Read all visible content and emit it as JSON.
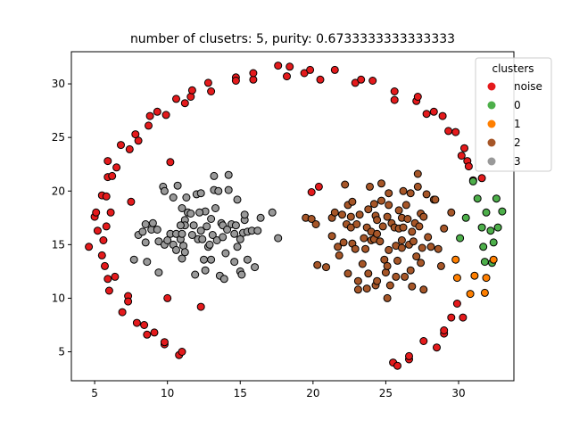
{
  "chart_data": {
    "type": "scatter",
    "title": "number of clusetrs: 5, purity: 0.6733333333333333",
    "xlabel": "",
    "ylabel": "",
    "xlim": [
      3.4,
      33.8
    ],
    "ylim": [
      2.3,
      33.0
    ],
    "x_ticks": [
      5,
      10,
      15,
      20,
      25,
      30
    ],
    "y_ticks": [
      5,
      10,
      15,
      20,
      25,
      30
    ],
    "grid": false,
    "legend": {
      "title": "clusters",
      "placement": "top-right",
      "entries": [
        {
          "label": "noise",
          "color": "#e41a1c"
        },
        {
          "label": "0",
          "color": "#4daf4a"
        },
        {
          "label": "1",
          "color": "#ff7f00"
        },
        {
          "label": "2",
          "color": "#a65628"
        },
        {
          "label": "3",
          "color": "#999999"
        }
      ]
    },
    "series": [
      {
        "name": "noise",
        "color": "#e41a1c",
        "points": [
          [
            4.6,
            14.8
          ],
          [
            5.0,
            17.6
          ],
          [
            5.2,
            16.3
          ],
          [
            5.1,
            18.0
          ],
          [
            5.5,
            19.6
          ],
          [
            5.6,
            15.4
          ],
          [
            5.5,
            14.0
          ],
          [
            5.7,
            13.0
          ],
          [
            5.8,
            19.5
          ],
          [
            5.8,
            16.7
          ],
          [
            5.9,
            21.3
          ],
          [
            5.9,
            22.8
          ],
          [
            5.9,
            11.8
          ],
          [
            6.0,
            10.7
          ],
          [
            6.1,
            18.0
          ],
          [
            6.2,
            21.4
          ],
          [
            6.4,
            12.0
          ],
          [
            6.5,
            22.2
          ],
          [
            6.8,
            24.3
          ],
          [
            6.9,
            8.7
          ],
          [
            7.3,
            10.2
          ],
          [
            7.3,
            9.7
          ],
          [
            7.5,
            19.0
          ],
          [
            7.4,
            23.9
          ],
          [
            7.8,
            25.3
          ],
          [
            7.9,
            7.7
          ],
          [
            8.0,
            24.7
          ],
          [
            8.4,
            7.5
          ],
          [
            8.6,
            6.6
          ],
          [
            8.7,
            26.1
          ],
          [
            8.8,
            27.0
          ],
          [
            9.1,
            6.8
          ],
          [
            9.3,
            27.4
          ],
          [
            9.8,
            5.7
          ],
          [
            9.8,
            5.9
          ],
          [
            9.9,
            27.1
          ],
          [
            10.0,
            10.0
          ],
          [
            10.2,
            22.7
          ],
          [
            10.6,
            28.6
          ],
          [
            10.8,
            4.7
          ],
          [
            11.0,
            5.0
          ],
          [
            11.2,
            28.2
          ],
          [
            11.6,
            28.8
          ],
          [
            11.7,
            29.4
          ],
          [
            12.3,
            9.2
          ],
          [
            12.8,
            30.1
          ],
          [
            13.0,
            29.3
          ],
          [
            14.7,
            30.6
          ],
          [
            14.7,
            30.3
          ],
          [
            15.9,
            30.4
          ],
          [
            15.9,
            31.0
          ],
          [
            17.6,
            31.7
          ],
          [
            18.2,
            30.7
          ],
          [
            18.4,
            31.6
          ],
          [
            19.4,
            31.0
          ],
          [
            19.8,
            31.3
          ],
          [
            19.9,
            19.9
          ],
          [
            20.4,
            20.4
          ],
          [
            20.5,
            30.4
          ],
          [
            21.5,
            31.3
          ],
          [
            22.9,
            30.1
          ],
          [
            23.3,
            30.4
          ],
          [
            24.1,
            30.3
          ],
          [
            25.6,
            29.3
          ],
          [
            25.6,
            28.5
          ],
          [
            25.5,
            4.0
          ],
          [
            25.8,
            3.7
          ],
          [
            26.6,
            4.3
          ],
          [
            26.6,
            4.6
          ],
          [
            27.1,
            28.4
          ],
          [
            27.2,
            28.8
          ],
          [
            27.6,
            6.0
          ],
          [
            27.8,
            27.2
          ],
          [
            28.3,
            27.4
          ],
          [
            28.5,
            5.4
          ],
          [
            28.9,
            27.0
          ],
          [
            29.0,
            6.7
          ],
          [
            29.0,
            7.0
          ],
          [
            29.3,
            25.6
          ],
          [
            29.5,
            8.2
          ],
          [
            29.8,
            25.5
          ],
          [
            29.9,
            9.5
          ],
          [
            30.2,
            23.3
          ],
          [
            30.4,
            24.0
          ],
          [
            30.3,
            8.2
          ],
          [
            30.6,
            22.8
          ],
          [
            30.7,
            22.3
          ],
          [
            31.0,
            21.0
          ],
          [
            31.6,
            21.2
          ]
        ]
      },
      {
        "name": "0",
        "color": "#4daf4a",
        "points": [
          [
            30.1,
            15.6
          ],
          [
            30.5,
            17.5
          ],
          [
            31.0,
            20.9
          ],
          [
            31.3,
            19.3
          ],
          [
            31.6,
            16.6
          ],
          [
            31.7,
            14.8
          ],
          [
            31.8,
            13.4
          ],
          [
            31.9,
            18.0
          ],
          [
            32.2,
            16.3
          ],
          [
            32.3,
            13.3
          ],
          [
            32.4,
            15.2
          ],
          [
            32.6,
            19.3
          ],
          [
            32.7,
            16.6
          ],
          [
            33.0,
            18.1
          ]
        ]
      },
      {
        "name": "1",
        "color": "#ff7f00",
        "points": [
          [
            29.8,
            13.6
          ],
          [
            29.9,
            11.9
          ],
          [
            30.8,
            10.4
          ],
          [
            31.1,
            12.1
          ],
          [
            31.8,
            10.5
          ],
          [
            31.9,
            11.9
          ],
          [
            32.4,
            13.6
          ]
        ]
      },
      {
        "name": "2",
        "color": "#a65628",
        "points": [
          [
            19.5,
            17.5
          ],
          [
            19.9,
            17.4
          ],
          [
            20.2,
            16.9
          ],
          [
            20.3,
            13.1
          ],
          [
            20.9,
            12.9
          ],
          [
            21.3,
            17.5
          ],
          [
            21.5,
            18.0
          ],
          [
            21.7,
            14.8
          ],
          [
            21.8,
            14.0
          ],
          [
            22.0,
            17.8
          ],
          [
            22.1,
            15.2
          ],
          [
            22.2,
            20.6
          ],
          [
            22.3,
            16.9
          ],
          [
            22.4,
            18.7
          ],
          [
            22.6,
            17.6
          ],
          [
            22.6,
            16.6
          ],
          [
            22.7,
            15.1
          ],
          [
            22.7,
            19.0
          ],
          [
            22.9,
            14.6
          ],
          [
            23.0,
            16.9
          ],
          [
            23.2,
            17.8
          ],
          [
            23.1,
            11.6
          ],
          [
            23.1,
            10.8
          ],
          [
            23.4,
            13.2
          ],
          [
            23.5,
            15.6
          ],
          [
            23.6,
            14.6
          ],
          [
            23.7,
            10.9
          ],
          [
            23.7,
            16.6
          ],
          [
            23.8,
            18.3
          ],
          [
            23.8,
            12.3
          ],
          [
            24.0,
            16.2
          ],
          [
            24.0,
            15.4
          ],
          [
            23.9,
            20.4
          ],
          [
            24.2,
            18.8
          ],
          [
            24.2,
            15.5
          ],
          [
            24.3,
            17.7
          ],
          [
            24.3,
            11.2
          ],
          [
            24.4,
            16.0
          ],
          [
            24.4,
            17.3
          ],
          [
            24.6,
            15.3
          ],
          [
            24.7,
            19.1
          ],
          [
            24.7,
            20.7
          ],
          [
            24.8,
            16.7
          ],
          [
            24.9,
            13.6
          ],
          [
            25.0,
            12.4
          ],
          [
            25.1,
            17.6
          ],
          [
            25.2,
            19.8
          ],
          [
            25.2,
            18.7
          ],
          [
            25.2,
            14.5
          ],
          [
            25.1,
            13.0
          ],
          [
            25.1,
            10.0
          ],
          [
            25.3,
            11.2
          ],
          [
            25.4,
            17.0
          ],
          [
            25.6,
            16.6
          ],
          [
            25.7,
            12.0
          ],
          [
            25.7,
            14.9
          ],
          [
            25.8,
            13.5
          ],
          [
            25.9,
            16.5
          ],
          [
            25.9,
            18.2
          ],
          [
            26.1,
            17.5
          ],
          [
            26.1,
            15.4
          ],
          [
            26.1,
            14.7
          ],
          [
            26.2,
            20.0
          ],
          [
            26.2,
            16.6
          ],
          [
            26.4,
            18.7
          ],
          [
            26.5,
            17.4
          ],
          [
            26.6,
            15.0
          ],
          [
            26.7,
            12.6
          ],
          [
            26.7,
            19.8
          ],
          [
            26.8,
            16.2
          ],
          [
            26.8,
            11.1
          ],
          [
            26.9,
            15.3
          ],
          [
            27.0,
            17.0
          ],
          [
            27.1,
            13.9
          ],
          [
            27.2,
            20.4
          ],
          [
            27.2,
            21.6
          ],
          [
            27.3,
            16.7
          ],
          [
            27.4,
            13.3
          ],
          [
            27.4,
            17.9
          ],
          [
            27.5,
            14.7
          ],
          [
            27.6,
            10.8
          ],
          [
            27.8,
            19.7
          ],
          [
            27.9,
            15.7
          ],
          [
            28.1,
            14.8
          ],
          [
            28.3,
            19.2
          ],
          [
            28.4,
            19.2
          ],
          [
            28.6,
            14.6
          ],
          [
            28.8,
            13.0
          ],
          [
            29.0,
            16.5
          ],
          [
            29.5,
            18.0
          ],
          [
            27.6,
            17.6
          ],
          [
            26.3,
            12.0
          ],
          [
            24.4,
            11.6
          ],
          [
            22.4,
            12.3
          ],
          [
            21.3,
            15.8
          ]
        ]
      },
      {
        "name": "3",
        "color": "#999999",
        "points": [
          [
            7.7,
            13.6
          ],
          [
            8.0,
            15.9
          ],
          [
            8.3,
            16.2
          ],
          [
            8.5,
            16.9
          ],
          [
            8.5,
            15.2
          ],
          [
            8.6,
            13.4
          ],
          [
            8.9,
            16.4
          ],
          [
            9.0,
            17.0
          ],
          [
            9.3,
            16.4
          ],
          [
            9.4,
            15.3
          ],
          [
            9.4,
            12.4
          ],
          [
            9.7,
            20.4
          ],
          [
            9.8,
            15.0
          ],
          [
            9.8,
            20.0
          ],
          [
            10.0,
            15.4
          ],
          [
            10.2,
            16.0
          ],
          [
            10.4,
            19.4
          ],
          [
            10.4,
            15.0
          ],
          [
            10.6,
            16.0
          ],
          [
            10.6,
            14.5
          ],
          [
            10.7,
            20.5
          ],
          [
            10.9,
            15.5
          ],
          [
            11.0,
            18.4
          ],
          [
            11.0,
            16.0
          ],
          [
            11.0,
            13.7
          ],
          [
            11.1,
            14.9
          ],
          [
            11.2,
            17.3
          ],
          [
            11.2,
            16.8
          ],
          [
            11.2,
            14.3
          ],
          [
            11.3,
            19.4
          ],
          [
            11.4,
            18.0
          ],
          [
            11.6,
            17.9
          ],
          [
            11.7,
            15.9
          ],
          [
            11.8,
            16.8
          ],
          [
            11.9,
            12.2
          ],
          [
            12.0,
            19.7
          ],
          [
            12.1,
            15.5
          ],
          [
            12.3,
            16.3
          ],
          [
            12.3,
            19.8
          ],
          [
            12.4,
            15.5
          ],
          [
            12.5,
            13.6
          ],
          [
            12.6,
            12.6
          ],
          [
            12.6,
            18.1
          ],
          [
            12.7,
            16.7
          ],
          [
            12.8,
            14.8
          ],
          [
            12.9,
            15.0
          ],
          [
            13.0,
            13.6
          ],
          [
            13.1,
            15.9
          ],
          [
            13.2,
            20.1
          ],
          [
            13.2,
            21.4
          ],
          [
            13.3,
            18.4
          ],
          [
            13.4,
            15.4
          ],
          [
            13.5,
            20.0
          ],
          [
            13.6,
            12.1
          ],
          [
            13.7,
            17.0
          ],
          [
            13.8,
            15.7
          ],
          [
            13.8,
            16.8
          ],
          [
            13.9,
            11.8
          ],
          [
            14.0,
            14.2
          ],
          [
            14.1,
            16.4
          ],
          [
            14.2,
            20.1
          ],
          [
            14.2,
            21.5
          ],
          [
            14.4,
            16.9
          ],
          [
            14.6,
            16.0
          ],
          [
            14.6,
            13.4
          ],
          [
            14.7,
            16.8
          ],
          [
            14.8,
            19.2
          ],
          [
            14.8,
            14.8
          ],
          [
            15.0,
            15.5
          ],
          [
            15.0,
            12.5
          ],
          [
            15.1,
            12.2
          ],
          [
            15.2,
            16.1
          ],
          [
            15.3,
            17.3
          ],
          [
            15.3,
            17.8
          ],
          [
            15.5,
            16.2
          ],
          [
            15.5,
            13.6
          ],
          [
            15.8,
            16.3
          ],
          [
            16.0,
            12.9
          ],
          [
            16.2,
            16.3
          ],
          [
            16.4,
            17.5
          ],
          [
            17.2,
            18.0
          ],
          [
            17.6,
            15.6
          ],
          [
            12.2,
            18.0
          ],
          [
            10.9,
            16.8
          ],
          [
            13.0,
            17.4
          ]
        ]
      }
    ]
  }
}
